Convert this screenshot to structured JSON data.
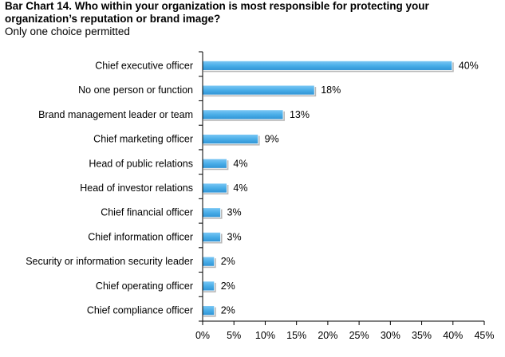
{
  "title": "Bar Chart 14.  Who within your organization is most responsible for protecting your organization’s reputation or brand image?",
  "subtitle": "Only one choice permitted",
  "chart_data": {
    "type": "bar",
    "orientation": "horizontal",
    "categories": [
      "Chief executive officer",
      "No one person or function",
      "Brand management leader or team",
      "Chief marketing officer",
      "Head of public relations",
      "Head of investor relations",
      "Chief financial officer",
      "Chief information officer",
      "Security or information security leader",
      "Chief operating officer",
      "Chief compliance officer"
    ],
    "values": [
      40,
      18,
      13,
      9,
      4,
      4,
      3,
      3,
      2,
      2,
      2
    ],
    "value_labels": [
      "40%",
      "18%",
      "13%",
      "9%",
      "4%",
      "4%",
      "3%",
      "3%",
      "2%",
      "2%",
      "2%"
    ],
    "xlim": [
      0,
      45
    ],
    "xticks": [
      0,
      5,
      10,
      15,
      20,
      25,
      30,
      35,
      40,
      45
    ],
    "xtick_labels": [
      "0%",
      "5%",
      "10%",
      "15%",
      "20%",
      "25%",
      "30%",
      "35%",
      "40%",
      "45%"
    ],
    "bar_color": "#4aaee8",
    "grid": false,
    "legend": "none"
  }
}
